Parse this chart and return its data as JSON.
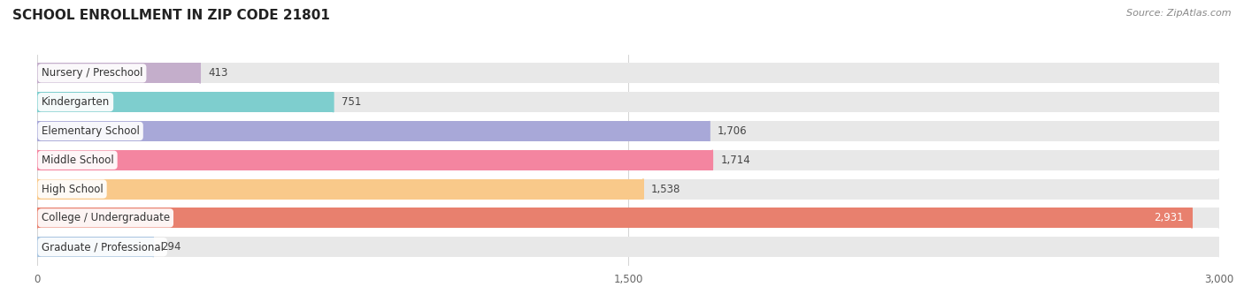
{
  "title": "SCHOOL ENROLLMENT IN ZIP CODE 21801",
  "source": "Source: ZipAtlas.com",
  "categories": [
    "Nursery / Preschool",
    "Kindergarten",
    "Elementary School",
    "Middle School",
    "High School",
    "College / Undergraduate",
    "Graduate / Professional"
  ],
  "values": [
    413,
    751,
    1706,
    1714,
    1538,
    2931,
    294
  ],
  "bar_colors": [
    "#c4aecb",
    "#7ecece",
    "#a8a8d8",
    "#f485a0",
    "#f9c98a",
    "#e8806e",
    "#a8c4e0"
  ],
  "bar_bg_color": "#e8e8e8",
  "xlim_max": 3000,
  "xticks": [
    0,
    1500,
    3000
  ],
  "label_color_inside": "#ffffff",
  "label_color_outside": "#444444",
  "title_fontsize": 11,
  "source_fontsize": 8,
  "bar_label_fontsize": 8.5,
  "category_fontsize": 8.5,
  "background_color": "#ffffff"
}
